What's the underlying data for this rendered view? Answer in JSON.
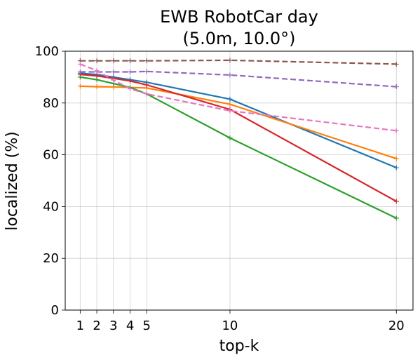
{
  "chart_data": {
    "type": "line",
    "title": [
      "EWB RobotCar day",
      "(5.0m, 10.0°)"
    ],
    "xlabel": "top-k",
    "ylabel": "localized (%)",
    "x": [
      1,
      2,
      3,
      4,
      5,
      10,
      20
    ],
    "x_ticks": [
      "1",
      "2",
      "3",
      "4",
      "5",
      "10",
      "20"
    ],
    "y_ticks": [
      "0",
      "20",
      "40",
      "60",
      "80",
      "100"
    ],
    "xlim": [
      0.1,
      21
    ],
    "ylim": [
      0,
      100
    ],
    "grid": true,
    "series": [
      {
        "color": "#1f77b4",
        "style": "solid",
        "values": [
          91.5,
          91.0,
          90.0,
          89.0,
          88.0,
          81.5,
          55.0
        ]
      },
      {
        "color": "#ff7f0e",
        "style": "solid",
        "values": [
          86.5,
          86.3,
          86.2,
          86.0,
          85.8,
          79.5,
          58.5
        ]
      },
      {
        "color": "#2ca02c",
        "style": "solid",
        "values": [
          90.0,
          89.0,
          87.5,
          86.0,
          83.5,
          66.5,
          35.5
        ]
      },
      {
        "color": "#d62728",
        "style": "solid",
        "values": [
          91.0,
          90.5,
          89.5,
          88.5,
          87.0,
          77.5,
          42.0
        ]
      },
      {
        "color": "#9467bd",
        "style": "dashed",
        "values": [
          92.0,
          92.0,
          92.0,
          92.0,
          92.2,
          90.8,
          86.3
        ]
      },
      {
        "color": "#8c564b",
        "style": "dashed",
        "values": [
          96.3,
          96.3,
          96.3,
          96.3,
          96.3,
          96.5,
          95.0
        ]
      },
      {
        "color": "#e377c2",
        "style": "dashed",
        "values": [
          95.0,
          92.5,
          88.8,
          85.5,
          83.5,
          77.0,
          69.3
        ]
      }
    ]
  }
}
